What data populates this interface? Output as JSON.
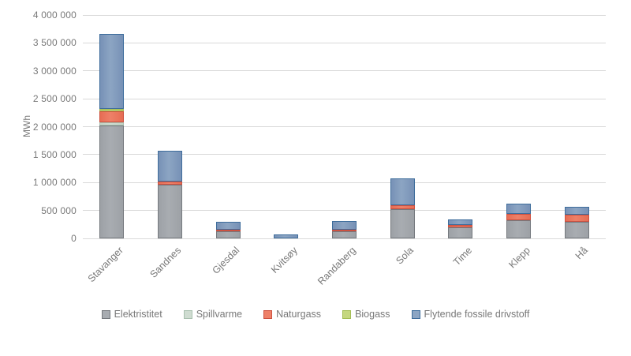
{
  "chart_data": {
    "type": "bar",
    "stacked": true,
    "title": "",
    "xlabel": "",
    "ylabel": "MWh",
    "ylim": [
      0,
      4000000
    ],
    "ytick_step": 500000,
    "ytick_labels": [
      "0",
      "500 000",
      "1 000 000",
      "1 500 000",
      "2 000 000",
      "2 500 000",
      "3 000 000",
      "3 500 000",
      "4 000 000"
    ],
    "grid": true,
    "legend_position": "bottom",
    "categories": [
      "Stavanger",
      "Sandnes",
      "Gjesdal",
      "Kvitsøy",
      "Randaberg",
      "Sola",
      "Time",
      "Klepp",
      "Hå"
    ],
    "series": [
      {
        "name": "Elektristitet",
        "color": "#a8acb1",
        "color_edge": "#9da1a6",
        "border": "#75797e",
        "values": [
          2020000,
          960000,
          130000,
          0,
          125000,
          530000,
          205000,
          330000,
          300000
        ]
      },
      {
        "name": "Spillvarme",
        "color": "#cfdcd1",
        "color_edge": "#c3d3c6",
        "border": "#a9c0af",
        "values": [
          60000,
          0,
          0,
          0,
          0,
          0,
          0,
          0,
          0
        ]
      },
      {
        "name": "Naturgass",
        "color": "#ee8068",
        "color_edge": "#e66d54",
        "border": "#cd5140",
        "values": [
          200000,
          55000,
          25000,
          0,
          30000,
          70000,
          30000,
          115000,
          130000
        ]
      },
      {
        "name": "Biogass",
        "color": "#c5d77f",
        "color_edge": "#b9cf6d",
        "border": "#a3bd54",
        "values": [
          35000,
          0,
          0,
          0,
          0,
          0,
          0,
          0,
          0
        ]
      },
      {
        "name": "Flytende fossile drivstoff",
        "color": "#8ca5c3",
        "color_edge": "#7791b6",
        "border": "#3e6d9c",
        "values": [
          1345000,
          550000,
          140000,
          70000,
          150000,
          470000,
          105000,
          175000,
          140000
        ]
      }
    ]
  }
}
